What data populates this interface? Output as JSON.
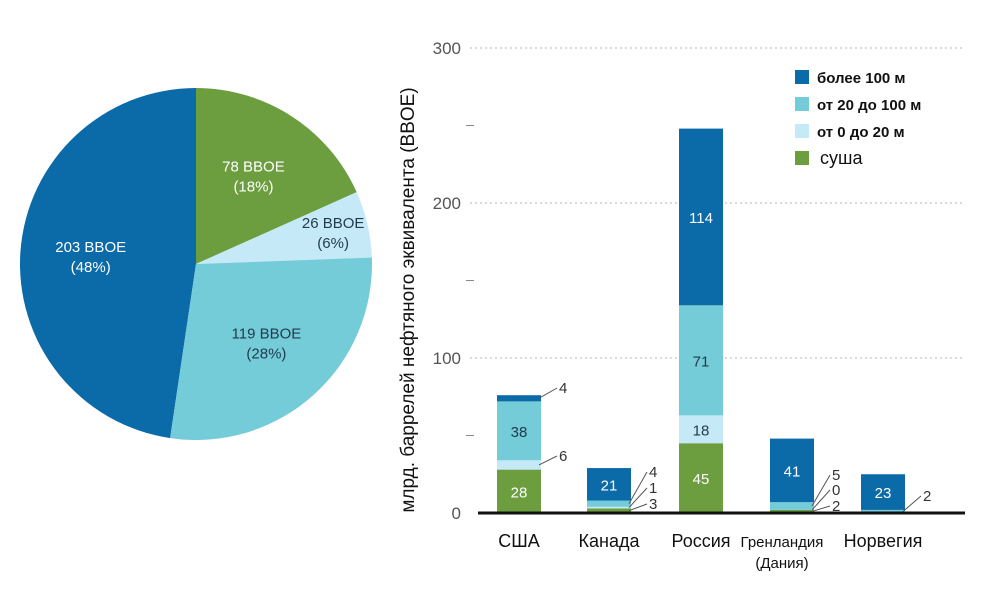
{
  "chart_data": [
    {
      "type": "pie",
      "slices": [
        {
          "label": "203 BBOE",
          "pct_label": "(48%)",
          "value": 203,
          "color": "#0b6aa8",
          "text_color": "#ffffff"
        },
        {
          "label": "78 BBOE",
          "pct_label": "(18%)",
          "value": 78,
          "color": "#6c9e3f",
          "text_color": "#ffffff"
        },
        {
          "label": "26 BBOE",
          "pct_label": "(6%)",
          "value": 26,
          "color": "#c6e9f8",
          "text_color": "#1f3a4d"
        },
        {
          "label": "119 BBOE",
          "pct_label": "(28%)",
          "value": 119,
          "color": "#75ccd9",
          "text_color": "#1f3a4d"
        }
      ]
    },
    {
      "type": "bar",
      "stacked": true,
      "ylabel": "млрд. баррелей нефтяного эквивалента (BBOE)",
      "ylim": [
        0,
        300
      ],
      "yticks": [
        "0",
        "100",
        "200",
        "300"
      ],
      "grid": true,
      "legend_position": "top-right",
      "categories": [
        "США",
        "Канада",
        "Россия",
        "Гренландия (Дания)",
        "Норвегия"
      ],
      "category_lines": [
        [
          "США"
        ],
        [
          "Канада"
        ],
        [
          "Россия"
        ],
        [
          "Гренландия",
          "(Дания)"
        ],
        [
          "Норвегия"
        ]
      ],
      "series": [
        {
          "name": "суша",
          "color": "#6c9e3f",
          "text_color": "#ffffff",
          "values": [
            28,
            3,
            45,
            2,
            0
          ]
        },
        {
          "name": "от 0 до 20 м",
          "color": "#c6e9f8",
          "text_color": "#1f3a4d",
          "values": [
            6,
            1,
            18,
            0,
            0
          ]
        },
        {
          "name": "от 20 до 100 м",
          "color": "#75ccd9",
          "text_color": "#1f3a4d",
          "values": [
            38,
            4,
            71,
            5,
            2
          ]
        },
        {
          "name": "более 100 м",
          "color": "#0b6aa8",
          "text_color": "#ffffff",
          "values": [
            4,
            21,
            114,
            41,
            23
          ]
        }
      ],
      "legend_order": [
        "более 100 м",
        "от 20 до 100 м",
        "от 0 до 20 м",
        "суша"
      ],
      "inside_labels": [
        {
          "cat": 0,
          "series": 0,
          "text": "28"
        },
        {
          "cat": 0,
          "series": 2,
          "text": "38"
        },
        {
          "cat": 1,
          "series": 3,
          "text": "21"
        },
        {
          "cat": 2,
          "series": 0,
          "text": "45"
        },
        {
          "cat": 2,
          "series": 1,
          "text": "18"
        },
        {
          "cat": 2,
          "series": 2,
          "text": "71"
        },
        {
          "cat": 2,
          "series": 3,
          "text": "114"
        },
        {
          "cat": 3,
          "series": 3,
          "text": "41"
        },
        {
          "cat": 4,
          "series": 3,
          "text": "23"
        }
      ],
      "callouts": [
        {
          "cat": 0,
          "series": 3,
          "text": "4"
        },
        {
          "cat": 0,
          "series": 1,
          "text": "6"
        },
        {
          "cat": 1,
          "series": 2,
          "text": "4"
        },
        {
          "cat": 1,
          "series": 1,
          "text": "1"
        },
        {
          "cat": 1,
          "series": 0,
          "text": "3"
        },
        {
          "cat": 3,
          "series": 2,
          "text": "5"
        },
        {
          "cat": 3,
          "series": 1,
          "text": "0"
        },
        {
          "cat": 3,
          "series": 0,
          "text": "2"
        },
        {
          "cat": 4,
          "series": 2,
          "text": "2"
        }
      ]
    }
  ]
}
